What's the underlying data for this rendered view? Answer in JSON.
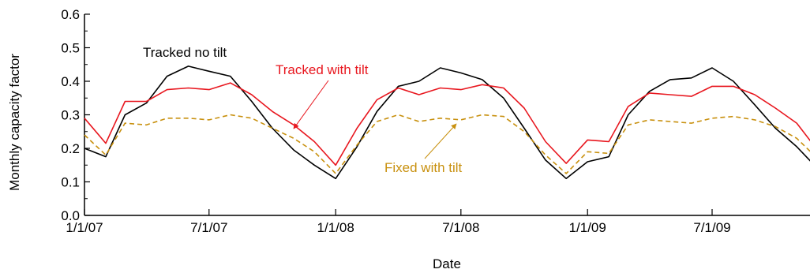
{
  "chart_data": {
    "type": "line",
    "xlabel": "Date",
    "ylabel": "Monthly capacity factor",
    "ylim": [
      0,
      0.6
    ],
    "xlim": [
      "2007-01-01",
      "2009-12-31"
    ],
    "grid": false,
    "x_ticks": [
      "1/1/07",
      "7/1/07",
      "1/1/08",
      "7/1/08",
      "1/1/09",
      "7/1/09"
    ],
    "y_ticks": [
      "0.0",
      "0.1",
      "0.2",
      "0.3",
      "0.4",
      "0.5",
      "0.6"
    ],
    "x": [
      "2007-01-01",
      "2007-02-01",
      "2007-03-01",
      "2007-04-01",
      "2007-05-01",
      "2007-06-01",
      "2007-07-01",
      "2007-08-01",
      "2007-09-01",
      "2007-10-01",
      "2007-11-01",
      "2007-12-01",
      "2008-01-01",
      "2008-02-01",
      "2008-03-01",
      "2008-04-01",
      "2008-05-01",
      "2008-06-01",
      "2008-07-01",
      "2008-08-01",
      "2008-09-01",
      "2008-10-01",
      "2008-11-01",
      "2008-12-01",
      "2009-01-01",
      "2009-02-01",
      "2009-03-01",
      "2009-04-01",
      "2009-05-01",
      "2009-06-01",
      "2009-07-01",
      "2009-08-01",
      "2009-09-01",
      "2009-10-01",
      "2009-11-01",
      "2009-12-01"
    ],
    "series": [
      {
        "name": "Tracked no tilt",
        "color": "#000000",
        "dash": "solid",
        "values": [
          0.2,
          0.175,
          0.3,
          0.335,
          0.415,
          0.445,
          0.43,
          0.415,
          0.34,
          0.26,
          0.195,
          0.15,
          0.11,
          0.205,
          0.31,
          0.385,
          0.4,
          0.44,
          0.425,
          0.405,
          0.35,
          0.26,
          0.165,
          0.11,
          0.16,
          0.175,
          0.3,
          0.37,
          0.405,
          0.41,
          0.44,
          0.4,
          0.33,
          0.26,
          0.205,
          0.14
        ]
      },
      {
        "name": "Tracked with tilt",
        "color": "#e8171f",
        "dash": "solid",
        "values": [
          0.29,
          0.215,
          0.34,
          0.34,
          0.375,
          0.38,
          0.375,
          0.395,
          0.36,
          0.31,
          0.27,
          0.22,
          0.15,
          0.26,
          0.345,
          0.38,
          0.36,
          0.38,
          0.375,
          0.39,
          0.38,
          0.32,
          0.22,
          0.155,
          0.225,
          0.22,
          0.325,
          0.365,
          0.36,
          0.355,
          0.385,
          0.385,
          0.36,
          0.32,
          0.275,
          0.195
        ]
      },
      {
        "name": "Fixed with tilt",
        "color": "#c8900e",
        "dash": "dashed",
        "values": [
          0.24,
          0.18,
          0.275,
          0.27,
          0.29,
          0.29,
          0.285,
          0.3,
          0.29,
          0.26,
          0.23,
          0.19,
          0.125,
          0.21,
          0.28,
          0.3,
          0.28,
          0.29,
          0.285,
          0.3,
          0.295,
          0.25,
          0.18,
          0.125,
          0.19,
          0.185,
          0.27,
          0.285,
          0.28,
          0.275,
          0.29,
          0.295,
          0.285,
          0.265,
          0.23,
          0.17
        ]
      }
    ],
    "annotations": [
      {
        "text": "Tracked no tilt",
        "color": "#000000"
      },
      {
        "text": "Tracked with tilt",
        "color": "#e8171f"
      },
      {
        "text": "Fixed with tilt",
        "color": "#c8900e"
      }
    ]
  }
}
